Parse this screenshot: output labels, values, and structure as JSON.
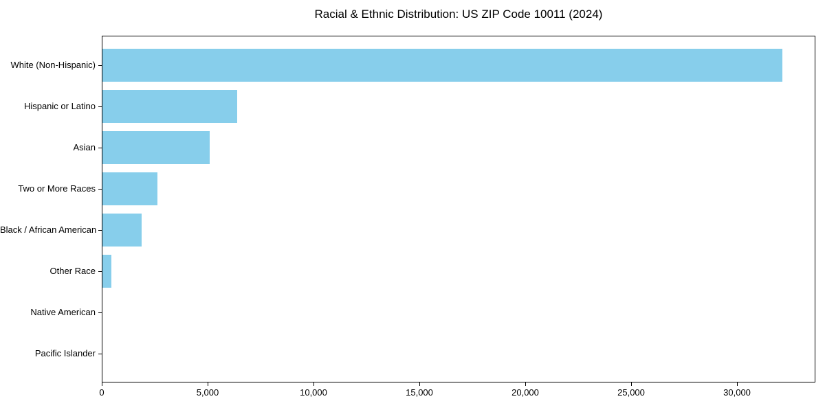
{
  "title": "Racial & Ethnic Distribution: US ZIP Code 10011 (2024)",
  "colors": {
    "bar": "#87CEEB",
    "text": "#000000",
    "frame": "#000000",
    "background": "#ffffff"
  },
  "chart_data": {
    "type": "bar",
    "orientation": "horizontal",
    "title": "Racial & Ethnic Distribution: US ZIP Code 10011 (2024)",
    "xlabel": "",
    "ylabel": "",
    "categories": [
      "White (Non-Hispanic)",
      "Hispanic or Latino",
      "Asian",
      "Two or More Races",
      "Black / African American",
      "Other Race",
      "Native American",
      "Pacific Islander"
    ],
    "values": [
      32100,
      6350,
      5050,
      2600,
      1850,
      420,
      0,
      0
    ],
    "xlim": [
      0,
      33700
    ],
    "x_ticks": [
      0,
      5000,
      10000,
      15000,
      20000,
      25000,
      30000
    ],
    "x_tick_labels": [
      "0",
      "5,000",
      "10,000",
      "15,000",
      "20,000",
      "25,000",
      "30,000"
    ],
    "bar_color": "#87CEEB",
    "grid": false,
    "legend": null
  }
}
